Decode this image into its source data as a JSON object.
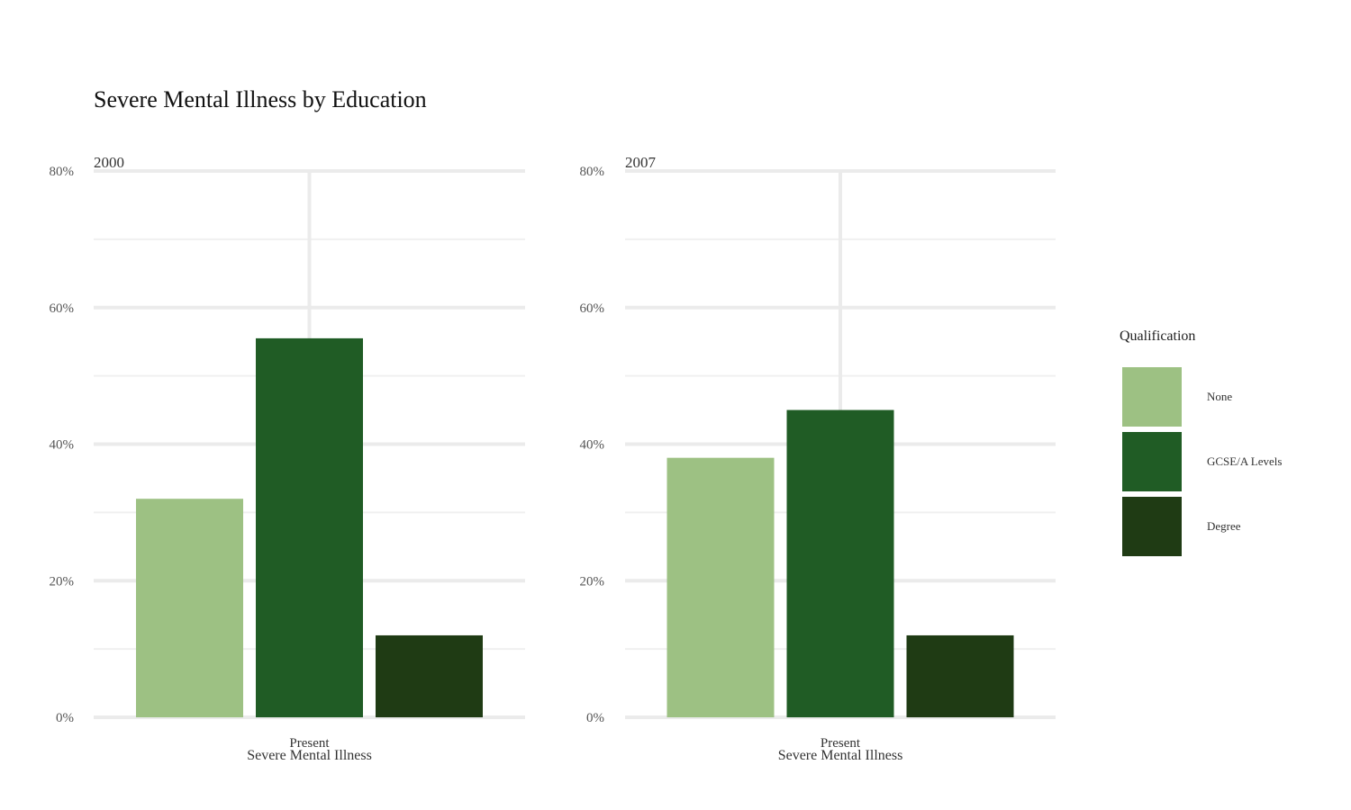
{
  "chart_data": {
    "type": "bar",
    "title": "Severe Mental Illness by Education",
    "xlabel": "Severe Mental Illness",
    "ylabel": "",
    "ylim": [
      0,
      0.8
    ],
    "y_ticks": [
      "0%",
      "20%",
      "40%",
      "60%",
      "80%"
    ],
    "y_tick_values": [
      0,
      0.2,
      0.4,
      0.6,
      0.8
    ],
    "categories": [
      "Present"
    ],
    "grid": true,
    "legend": {
      "title": "Qualification",
      "placement": "right",
      "entries": [
        {
          "label": "None",
          "color": "#9dc183"
        },
        {
          "label": "GCSE/A Levels",
          "color": "#205c25"
        },
        {
          "label": "Degree",
          "color": "#1f3b14"
        }
      ]
    },
    "facets": [
      {
        "label": "2000",
        "series": [
          {
            "name": "None",
            "values": [
              0.32
            ]
          },
          {
            "name": "GCSE/A Levels",
            "values": [
              0.555
            ]
          },
          {
            "name": "Degree",
            "values": [
              0.12
            ]
          }
        ]
      },
      {
        "label": "2007",
        "series": [
          {
            "name": "None",
            "values": [
              0.38
            ]
          },
          {
            "name": "GCSE/A Levels",
            "values": [
              0.45
            ]
          },
          {
            "name": "Degree",
            "values": [
              0.12
            ]
          }
        ]
      }
    ]
  }
}
